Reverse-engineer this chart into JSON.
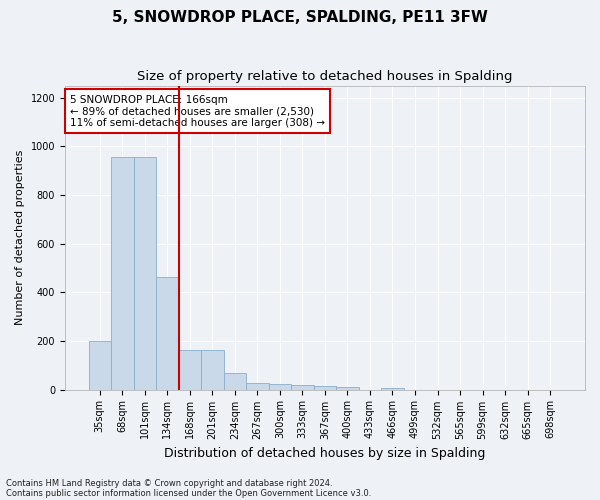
{
  "title": "5, SNOWDROP PLACE, SPALDING, PE11 3FW",
  "subtitle": "Size of property relative to detached houses in Spalding",
  "xlabel": "Distribution of detached houses by size in Spalding",
  "ylabel": "Number of detached properties",
  "categories": [
    "35sqm",
    "68sqm",
    "101sqm",
    "134sqm",
    "168sqm",
    "201sqm",
    "234sqm",
    "267sqm",
    "300sqm",
    "333sqm",
    "367sqm",
    "400sqm",
    "433sqm",
    "466sqm",
    "499sqm",
    "532sqm",
    "565sqm",
    "599sqm",
    "632sqm",
    "665sqm",
    "698sqm"
  ],
  "values": [
    200,
    955,
    955,
    462,
    163,
    163,
    70,
    28,
    22,
    17,
    14,
    10,
    0,
    8,
    0,
    0,
    0,
    0,
    0,
    0,
    0
  ],
  "bar_color": "#c9d9ea",
  "bar_edge_color": "#8aaecb",
  "vline_x_index": 4,
  "vline_color": "#cc0000",
  "annotation_text": "5 SNOWDROP PLACE: 166sqm\n← 89% of detached houses are smaller (2,530)\n11% of semi-detached houses are larger (308) →",
  "annotation_box_facecolor": "#ffffff",
  "annotation_box_edgecolor": "#cc0000",
  "footnote1": "Contains HM Land Registry data © Crown copyright and database right 2024.",
  "footnote2": "Contains public sector information licensed under the Open Government Licence v3.0.",
  "ylim": [
    0,
    1250
  ],
  "yticks": [
    0,
    200,
    400,
    600,
    800,
    1000,
    1200
  ],
  "title_fontsize": 11,
  "subtitle_fontsize": 9.5,
  "xlabel_fontsize": 9,
  "ylabel_fontsize": 8,
  "tick_fontsize": 7,
  "annotation_fontsize": 7.5,
  "footnote_fontsize": 6,
  "background_color": "#eef2f7",
  "grid_color": "#ffffff",
  "spine_color": "#aaaaaa"
}
